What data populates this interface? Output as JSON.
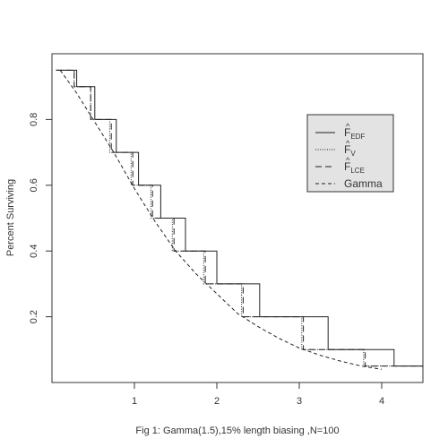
{
  "chart_data": {
    "type": "line",
    "title": "",
    "xlabel": "Fig 1: Gamma(1.5),15% length biasing ,N=100",
    "ylabel": "Percent Surviving",
    "xlim": [
      0,
      4.5
    ],
    "ylim": [
      0,
      1
    ],
    "x_ticks": [
      1,
      2,
      3,
      4
    ],
    "y_ticks": [
      0.2,
      0.4,
      0.6,
      0.8
    ],
    "x_tick_labels": [
      "1",
      "2",
      "3",
      "4"
    ],
    "y_tick_labels": [
      "0.2",
      "0.4",
      "0.6",
      "0.8"
    ],
    "grid": false,
    "legend_position": "top-right",
    "legend": [
      {
        "label": "F",
        "hat": "^",
        "sub": "EDF",
        "style": "solid"
      },
      {
        "label": "F",
        "hat": "^",
        "sub": "V",
        "style": "dotted"
      },
      {
        "label": "F",
        "hat": "^",
        "sub": "LCE",
        "style": "longdash"
      },
      {
        "label": "Gamma",
        "hat": "",
        "sub": "",
        "style": "dashed"
      }
    ],
    "series": [
      {
        "style": "solid",
        "kind": "step",
        "x": [
          0.3,
          0.52,
          0.78,
          1.05,
          1.32,
          1.62,
          2.0,
          2.52,
          3.35,
          4.15
        ],
        "y": [
          0.9,
          0.8,
          0.7,
          0.6,
          0.5,
          0.4,
          0.3,
          0.2,
          0.1,
          0.05
        ]
      },
      {
        "style": "dotted",
        "kind": "step",
        "x": [
          0.27,
          0.47,
          0.7,
          0.96,
          1.2,
          1.46,
          1.84,
          2.3,
          3.03,
          3.78
        ],
        "y": [
          0.9,
          0.8,
          0.7,
          0.6,
          0.5,
          0.4,
          0.3,
          0.2,
          0.1,
          0.05
        ]
      },
      {
        "style": "longdash",
        "kind": "step",
        "x": [
          0.27,
          0.47,
          0.72,
          0.98,
          1.22,
          1.48,
          1.86,
          2.32,
          3.05,
          3.8
        ],
        "y": [
          0.9,
          0.8,
          0.7,
          0.6,
          0.5,
          0.4,
          0.3,
          0.2,
          0.1,
          0.05
        ]
      },
      {
        "style": "dashed",
        "kind": "curve",
        "name": "Gamma",
        "x": [
          0.1,
          0.3,
          0.5,
          0.75,
          1.0,
          1.25,
          1.5,
          1.75,
          2.0,
          2.25,
          2.5,
          2.75,
          3.0,
          3.25,
          3.5,
          3.75,
          4.0
        ],
        "y": [
          0.95,
          0.88,
          0.8,
          0.7,
          0.59,
          0.49,
          0.4,
          0.33,
          0.27,
          0.21,
          0.17,
          0.135,
          0.105,
          0.083,
          0.065,
          0.05,
          0.04
        ]
      }
    ]
  }
}
